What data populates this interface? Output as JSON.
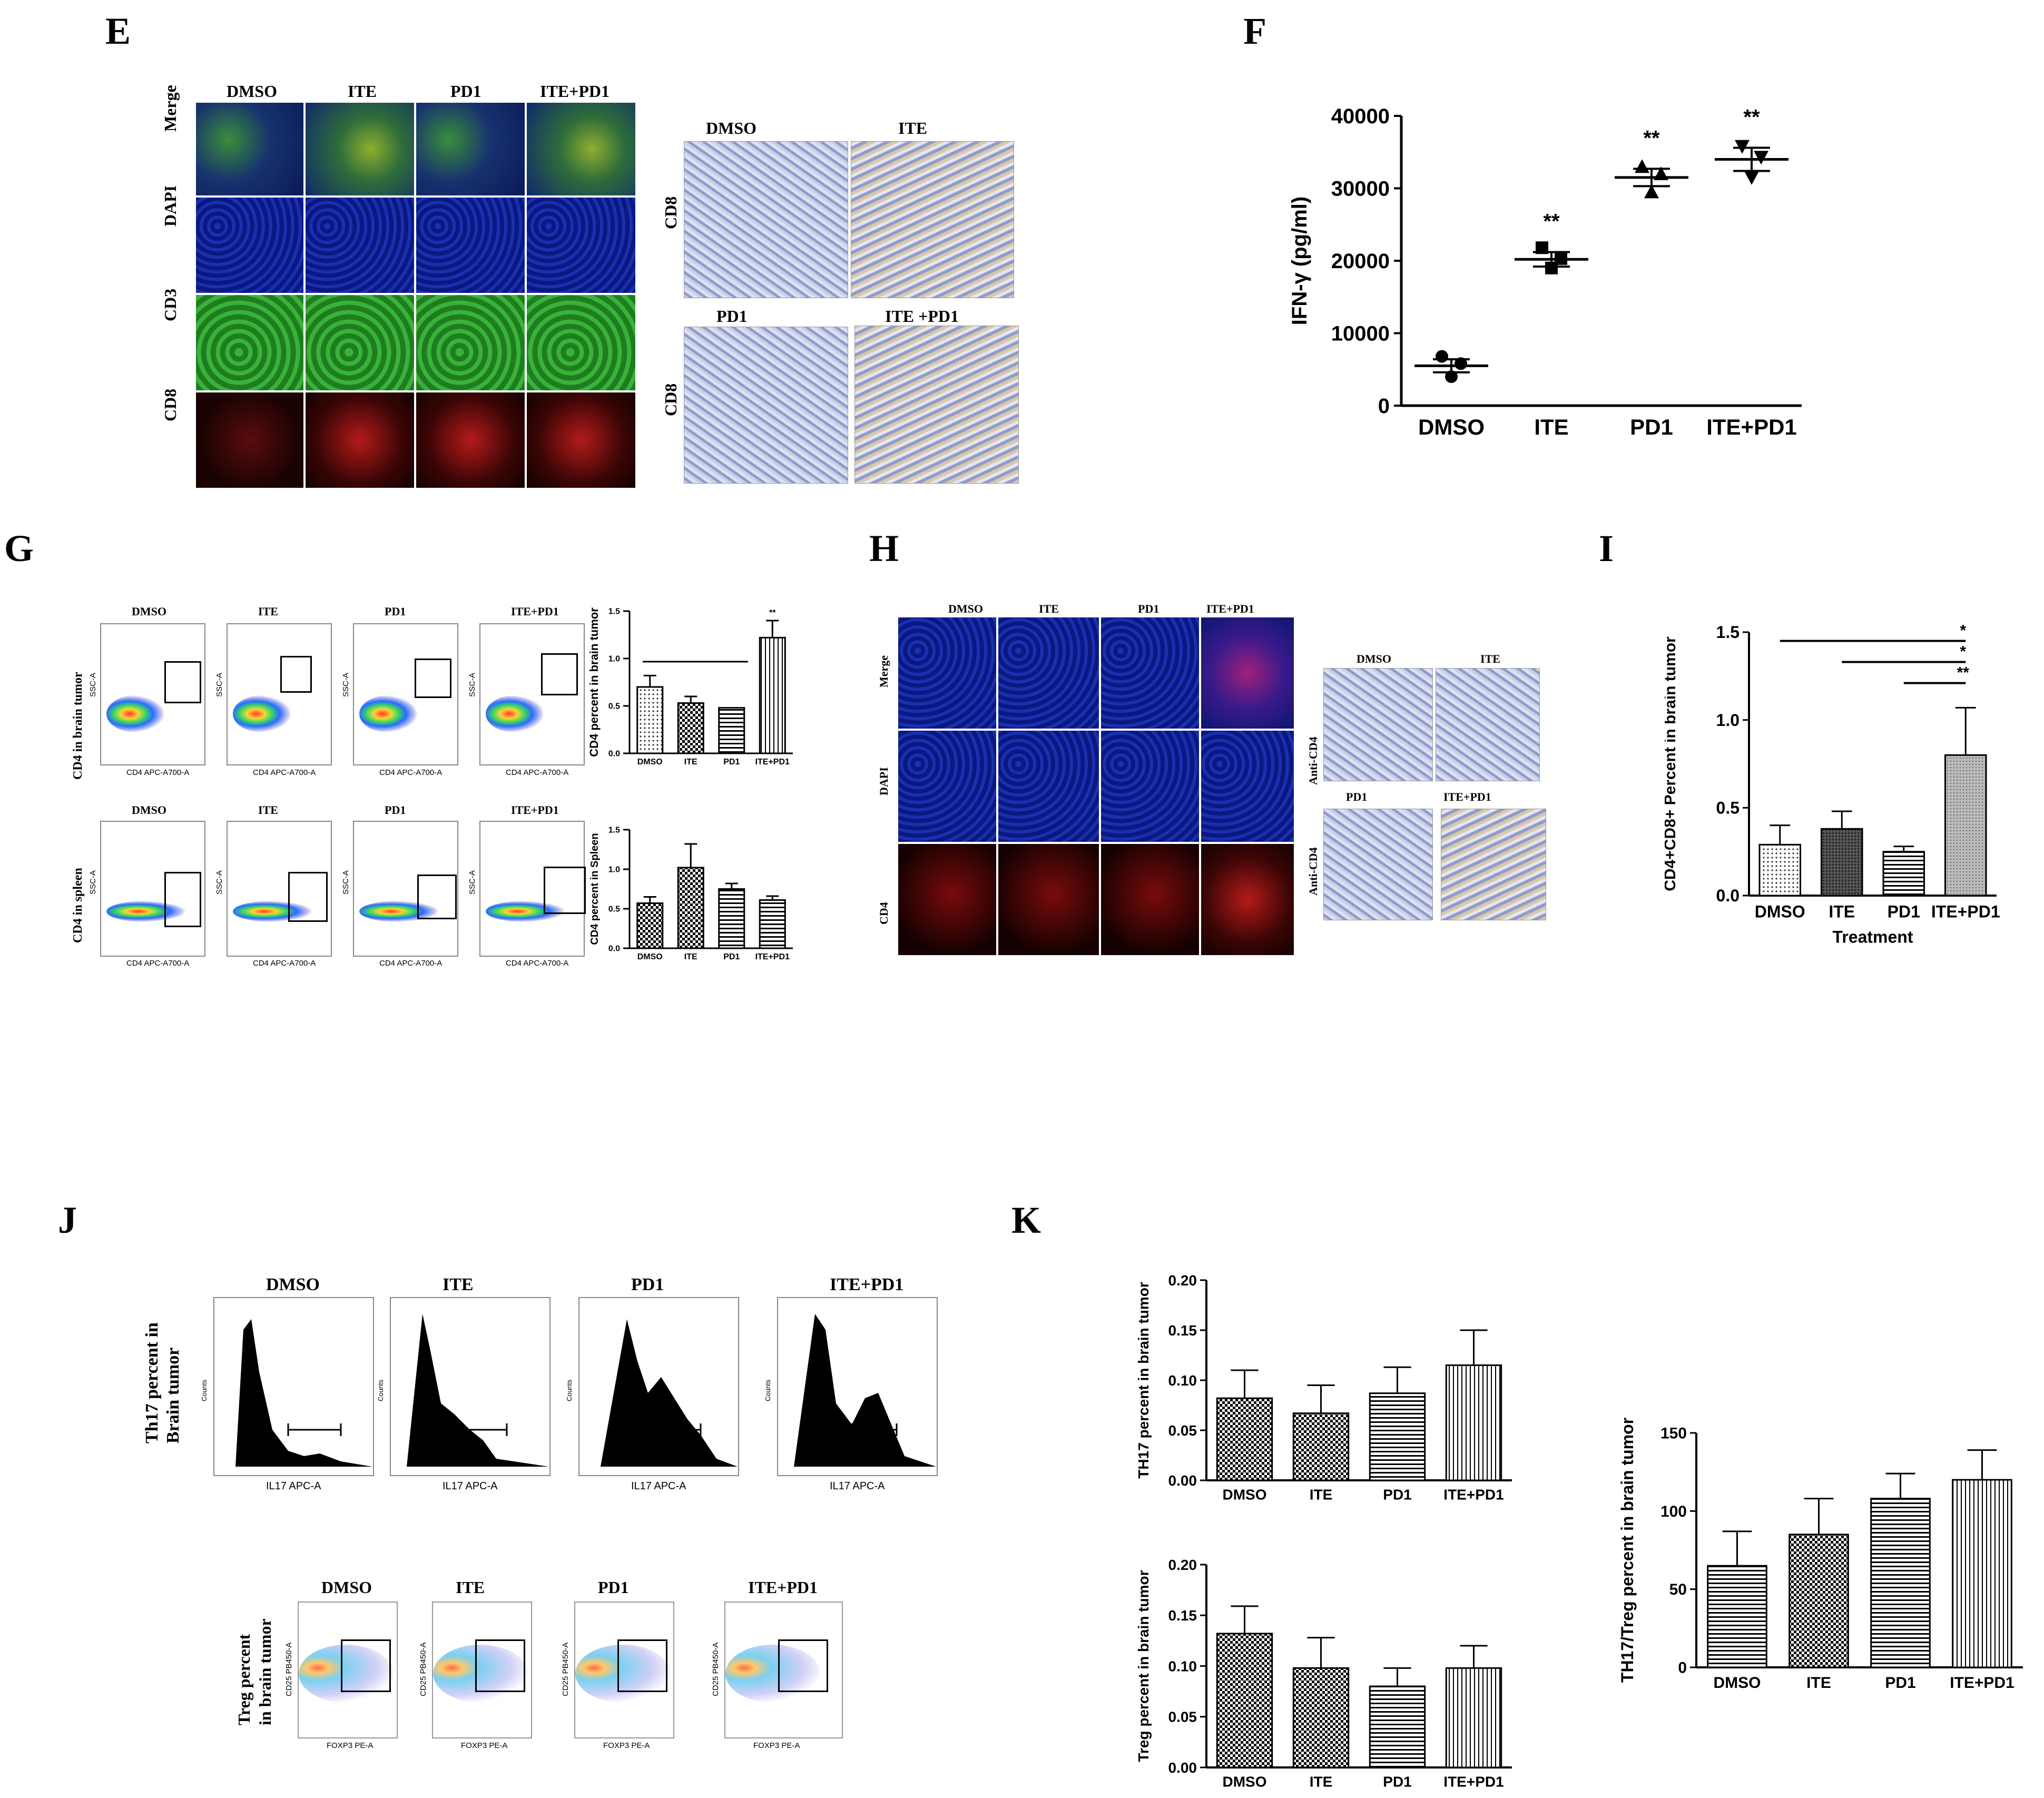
{
  "panel_labels": {
    "E": "E",
    "F": "F",
    "G": "G",
    "H": "H",
    "I": "I",
    "J": "J",
    "K": "K"
  },
  "panel_E": {
    "columns": [
      "DMSO",
      "ITE",
      "PD1",
      "ITE+PD1"
    ],
    "rows": [
      "Merge",
      "DAPI",
      "CD3",
      "CD8"
    ],
    "ihc_top": [
      "DMSO",
      "ITE"
    ],
    "ihc_bottom": [
      "PD1",
      "ITE +PD1"
    ],
    "ihc_row_label": "CD8"
  },
  "panel_G": {
    "columns": [
      "DMSO",
      "ITE",
      "PD1",
      "ITE+PD1"
    ],
    "row1_label": "CD4 in brain tumor",
    "row2_label": "CD4 in spleen",
    "yaxis": "SSC-A",
    "xaxis": "CD4 APC-A700-A"
  },
  "panel_H": {
    "columns": [
      "DMSO",
      "ITE",
      "PD1",
      "ITE+PD1"
    ],
    "rows": [
      "Merge",
      "DAPI",
      "CD4"
    ],
    "ihc_top": [
      "DMSO",
      "ITE"
    ],
    "ihc_bottom": [
      "PD1",
      "ITE+PD1"
    ],
    "ihc_row_label": "Anti-CD4"
  },
  "panel_J": {
    "hist_columns": [
      "DMSO",
      "ITE",
      "PD1",
      "ITE+PD1"
    ],
    "hist_row_label_1": "Th17 percent in",
    "hist_row_label_2": "Brain tumor",
    "hist_xaxis": "IL17 APC-A",
    "hist_yaxis": "Counts",
    "treg_columns": [
      "DMSO",
      "ITE",
      "PD1",
      "ITE+PD1"
    ],
    "treg_row_label_1": "Treg percent",
    "treg_row_label_2": "in brain tumor",
    "treg_xaxis": "FOXP3 PE-A",
    "treg_yaxis": "CD25 PB450-A"
  },
  "chart_data": [
    {
      "id": "F",
      "type": "scatter",
      "categories": [
        "DMSO",
        "ITE",
        "PD1",
        "ITE+PD1"
      ],
      "means": [
        5500,
        20200,
        31500,
        34000
      ],
      "sd": [
        900,
        1000,
        1200,
        1600
      ],
      "points": [
        [
          6800,
          4000,
          5800
        ],
        [
          21800,
          19000,
          20300
        ],
        [
          33000,
          29500,
          32000
        ],
        [
          35800,
          31500,
          34300
        ]
      ],
      "significance": [
        "",
        "**",
        "**",
        "**"
      ],
      "ylabel": "IFN-γ (pg/ml)",
      "ylim": [
        0,
        40000
      ],
      "yticks": [
        0,
        10000,
        20000,
        30000,
        40000
      ]
    },
    {
      "id": "G-brain",
      "type": "bar",
      "categories": [
        "DMSO",
        "ITE",
        "PD1",
        "ITE+PD1"
      ],
      "values": [
        0.7,
        0.53,
        0.48,
        1.22
      ],
      "errors": [
        0.12,
        0.07,
        0.0,
        0.18
      ],
      "significance": [
        "",
        "",
        "",
        "**"
      ],
      "ylabel": "CD4 percent in brain tumor",
      "ylim": [
        0,
        1.5
      ],
      "yticks": [
        "0.0",
        "0.5",
        "1.0",
        "1.5"
      ]
    },
    {
      "id": "G-spleen",
      "type": "bar",
      "categories": [
        "DMSO",
        "ITE",
        "PD1",
        "ITE+PD1"
      ],
      "values": [
        0.57,
        1.02,
        0.75,
        0.61
      ],
      "errors": [
        0.08,
        0.3,
        0.07,
        0.05
      ],
      "ylabel": "CD4 percent in Spleen",
      "ylim": [
        0,
        1.5
      ],
      "yticks": [
        "0.0",
        "0.5",
        "1.0",
        "1.5"
      ]
    },
    {
      "id": "I",
      "type": "bar",
      "categories": [
        "DMSO",
        "ITE",
        "PD1",
        "ITE+PD1"
      ],
      "values": [
        0.29,
        0.38,
        0.25,
        0.8
      ],
      "errors": [
        0.11,
        0.1,
        0.03,
        0.27
      ],
      "significance_lines": [
        "*",
        "*",
        "**"
      ],
      "ylabel": "CD4+CD8+ Percent in brain tumor",
      "xlabel": "Treatment",
      "ylim": [
        0,
        1.5
      ],
      "yticks": [
        "0.0",
        "0.5",
        "1.0",
        "1.5"
      ]
    },
    {
      "id": "K-th17",
      "type": "bar",
      "categories": [
        "DMSO",
        "ITE",
        "PD1",
        "ITE+PD1"
      ],
      "values": [
        0.082,
        0.067,
        0.087,
        0.115
      ],
      "errors": [
        0.028,
        0.028,
        0.026,
        0.035
      ],
      "ylabel": "TH17 percent in brain  tumor",
      "ylim": [
        0,
        0.2
      ],
      "yticks": [
        "0.00",
        "0.05",
        "0.10",
        "0.15",
        "0.20"
      ]
    },
    {
      "id": "K-treg",
      "type": "bar",
      "categories": [
        "DMSO",
        "ITE",
        "PD1",
        "ITE+PD1"
      ],
      "values": [
        0.132,
        0.098,
        0.08,
        0.098
      ],
      "errors": [
        0.027,
        0.03,
        0.018,
        0.022
      ],
      "ylabel": "Treg percent in brain tumor",
      "ylim": [
        0,
        0.2
      ],
      "yticks": [
        "0.00",
        "0.05",
        "0.10",
        "0.15",
        "0.20"
      ]
    },
    {
      "id": "K-ratio",
      "type": "bar",
      "categories": [
        "DMSO",
        "ITE",
        "PD1",
        "ITE+PD1"
      ],
      "values": [
        65,
        85,
        108,
        120
      ],
      "errors": [
        22,
        23,
        16,
        19
      ],
      "ylabel": "TH17/Treg percent in brain  tumor",
      "ylim": [
        0,
        150
      ],
      "yticks": [
        "0",
        "50",
        "100",
        "150"
      ]
    }
  ]
}
